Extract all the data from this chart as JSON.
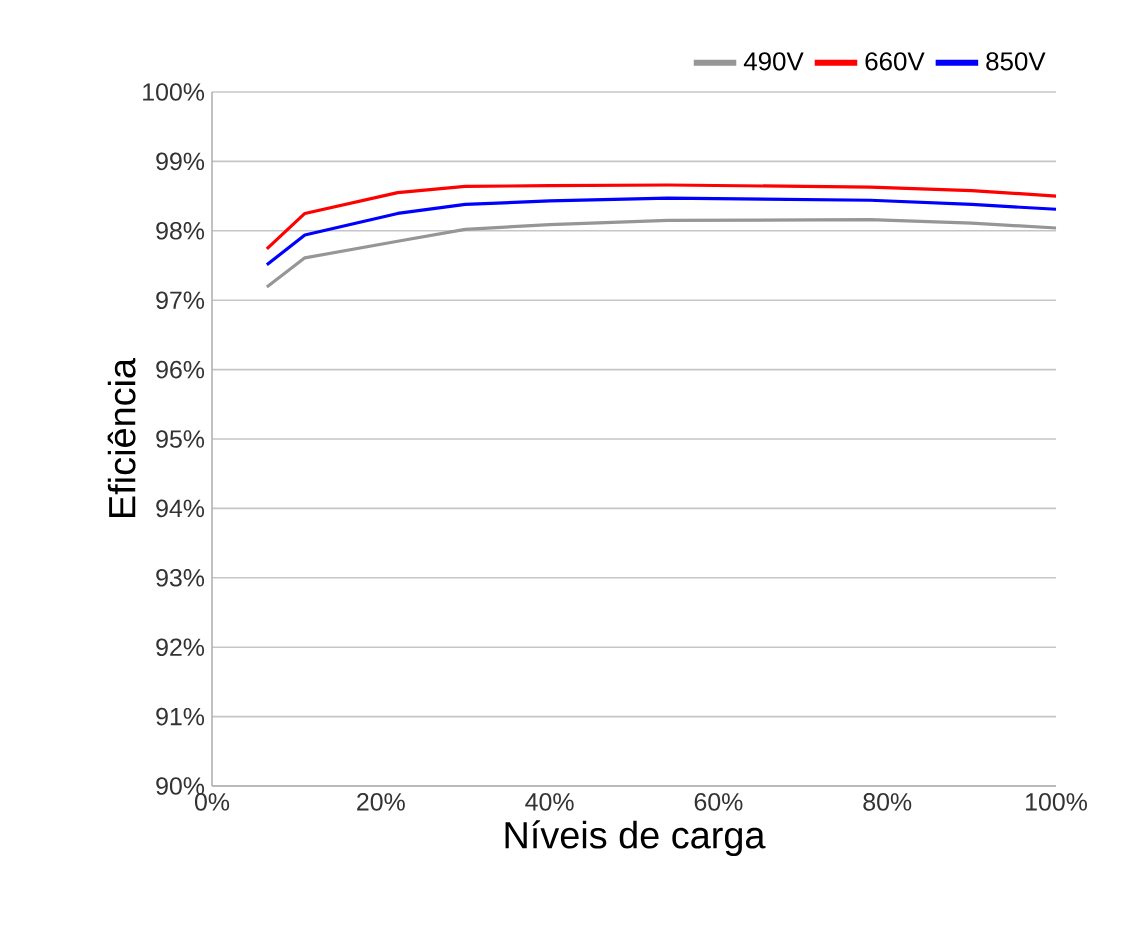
{
  "chart_data": {
    "type": "line",
    "xlabel": "Níveis de carga",
    "ylabel": "Eficiência",
    "xlim": [
      0,
      100
    ],
    "ylim": [
      90,
      100
    ],
    "xticks": [
      {
        "value": 0,
        "label": "0%"
      },
      {
        "value": 20,
        "label": "20%"
      },
      {
        "value": 40,
        "label": "40%"
      },
      {
        "value": 60,
        "label": "60%"
      },
      {
        "value": 80,
        "label": "80%"
      },
      {
        "value": 100,
        "label": "100%"
      }
    ],
    "yticks": [
      {
        "value": 90,
        "label": "90%"
      },
      {
        "value": 91,
        "label": "91%"
      },
      {
        "value": 92,
        "label": "92%"
      },
      {
        "value": 93,
        "label": "93%"
      },
      {
        "value": 94,
        "label": "94%"
      },
      {
        "value": 95,
        "label": "95%"
      },
      {
        "value": 96,
        "label": "96%"
      },
      {
        "value": 97,
        "label": "97%"
      },
      {
        "value": 98,
        "label": "98%"
      },
      {
        "value": 99,
        "label": "99%"
      },
      {
        "value": 100,
        "label": "100%"
      }
    ],
    "x": [
      6.5,
      11,
      22,
      30,
      40,
      54,
      78,
      90,
      100
    ],
    "series": [
      {
        "name": "490V",
        "color": "#969696",
        "values": [
          97.19,
          97.61,
          97.85,
          98.02,
          98.09,
          98.15,
          98.16,
          98.11,
          98.04
        ]
      },
      {
        "name": "660V",
        "color": "#ff0000",
        "values": [
          97.74,
          98.25,
          98.55,
          98.64,
          98.65,
          98.66,
          98.63,
          98.58,
          98.5
        ]
      },
      {
        "name": "850V",
        "color": "#0000ff",
        "values": [
          97.51,
          97.94,
          98.25,
          98.38,
          98.43,
          98.47,
          98.44,
          98.38,
          98.31
        ]
      }
    ],
    "grid": "y",
    "legend": "top right",
    "marker": "none",
    "line_style": "solid"
  }
}
